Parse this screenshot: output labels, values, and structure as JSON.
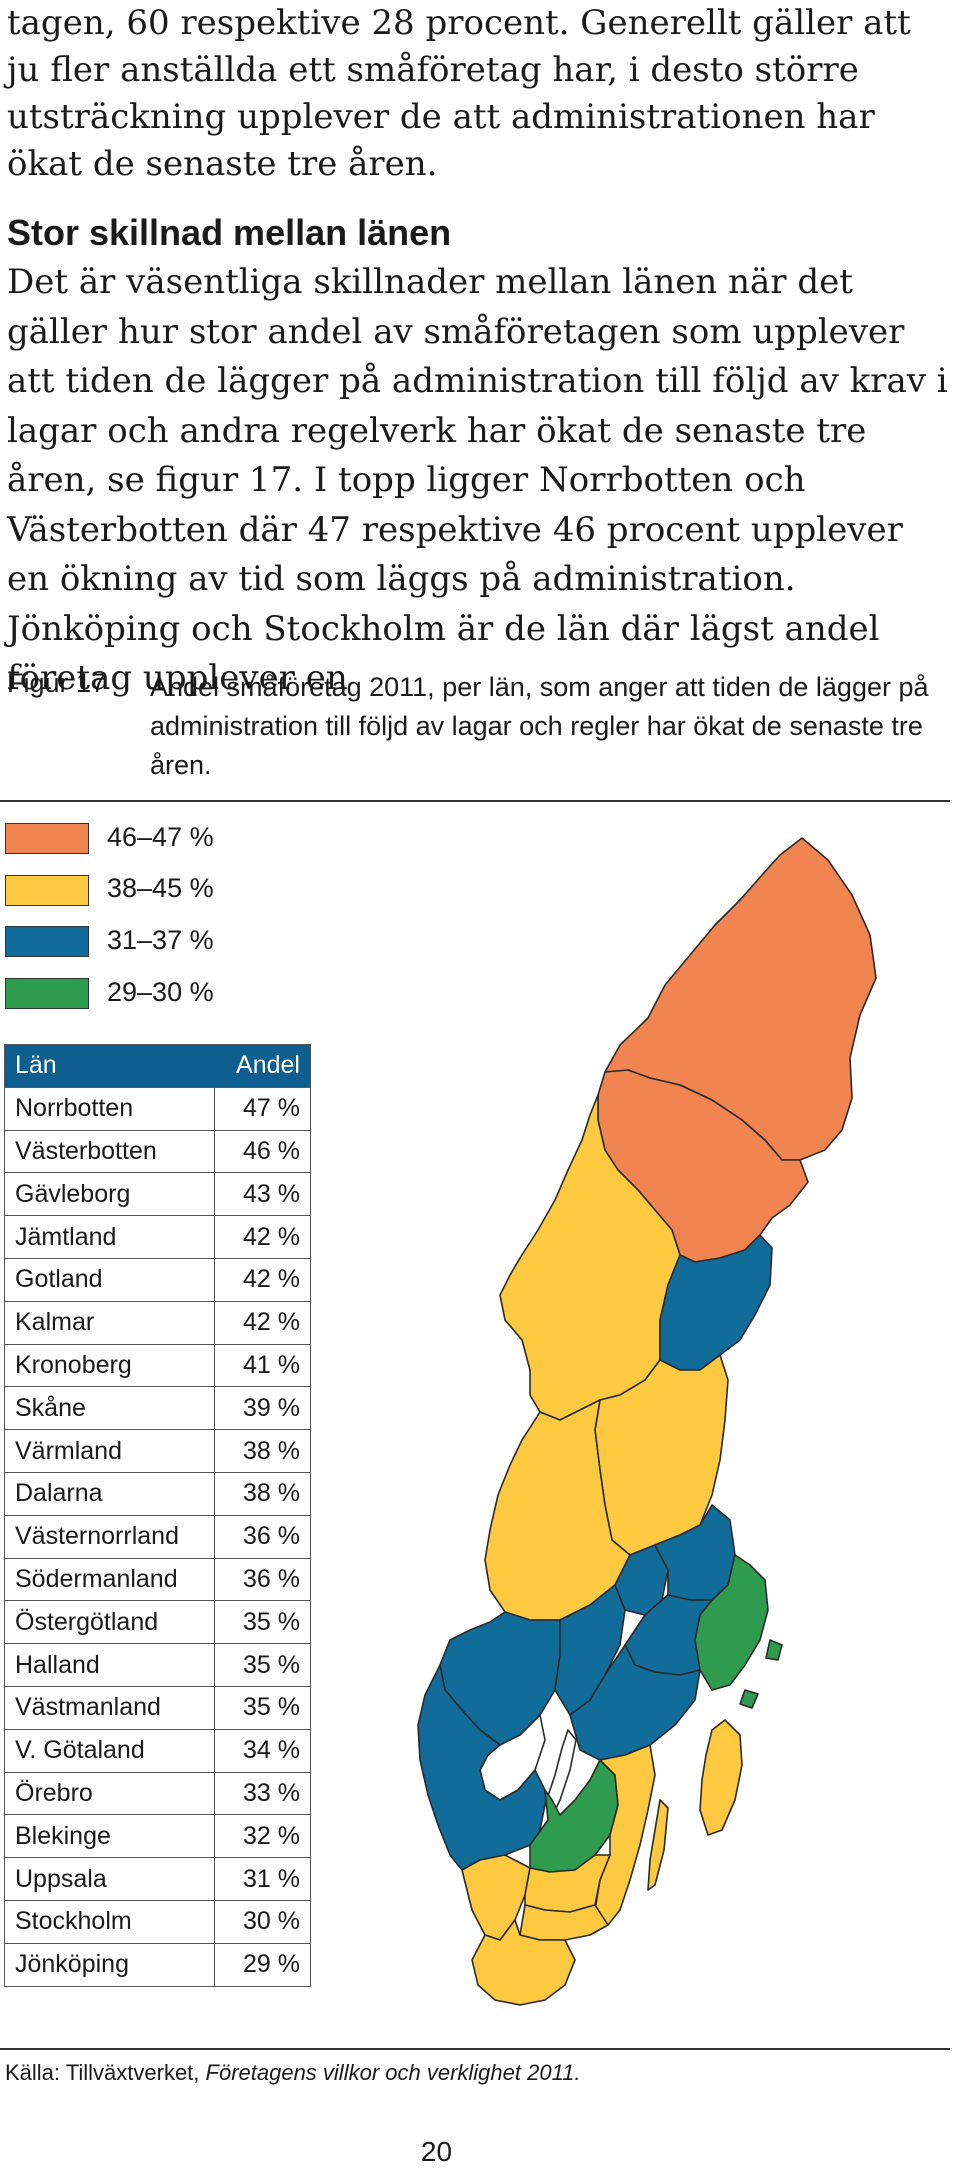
{
  "intro_paragraph": "tagen, 60 respektive 28 procent. Generellt gäller att ju fler anställda ett småföretag har, i desto större utsträckning upplever de att administrationen har ökat de senaste tre åren.",
  "section_heading": "Stor skillnad mellan länen",
  "section_paragraph": "Det är väsentliga skillnader mellan länen när det gäller hur stor andel av småföretagen som upplever att tiden de lägger på administration till följd av krav i lagar och andra regelverk har ökat de senaste tre åren, se figur 17. I topp ligger Norrbotten och Västerbotten där 47 respektive 46 procent upplever en ökning av tid som läggs på administration. Jönköping och Stockholm är de län där lägst andel företag upplever en",
  "figure": {
    "label": "Figur 17",
    "caption": "Andel småföretag 2011, per län, som anger att tiden de lägger på administration till följd av lagar och regler har ökat de senaste tre åren."
  },
  "legend": [
    {
      "label": "46–47 %",
      "color": "#f08552"
    },
    {
      "label": "38–45 %",
      "color": "#fcc940"
    },
    {
      "label": "31–37 %",
      "color": "#116c9a"
    },
    {
      "label": "29–30 %",
      "color": "#2e9b4f"
    }
  ],
  "table": {
    "headers": [
      "Län",
      "Andel"
    ],
    "rows": [
      [
        "Norrbotten",
        "47 %"
      ],
      [
        "Västerbotten",
        "46 %"
      ],
      [
        "Gävleborg",
        "43 %"
      ],
      [
        "Jämtland",
        "42 %"
      ],
      [
        "Gotland",
        "42 %"
      ],
      [
        "Kalmar",
        "42 %"
      ],
      [
        "Kronoberg",
        "41 %"
      ],
      [
        "Skåne",
        "39 %"
      ],
      [
        "Värmland",
        "38 %"
      ],
      [
        "Dalarna",
        "38 %"
      ],
      [
        "Västernorrland",
        "36 %"
      ],
      [
        "Södermanland",
        "36 %"
      ],
      [
        "Östergötland",
        "35 %"
      ],
      [
        "Halland",
        "35 %"
      ],
      [
        "Västmanland",
        "35 %"
      ],
      [
        "V. Götaland",
        "34 %"
      ],
      [
        "Örebro",
        "33 %"
      ],
      [
        "Blekinge",
        "32 %"
      ],
      [
        "Uppsala",
        "31 %"
      ],
      [
        "Stockholm",
        "30 %"
      ],
      [
        "Jönköping",
        "29 %"
      ]
    ]
  },
  "source": {
    "prefix": "Källa: Tillväxtverket, ",
    "title": "Företagens villkor och verklighet 2011."
  },
  "page_number": "20"
}
